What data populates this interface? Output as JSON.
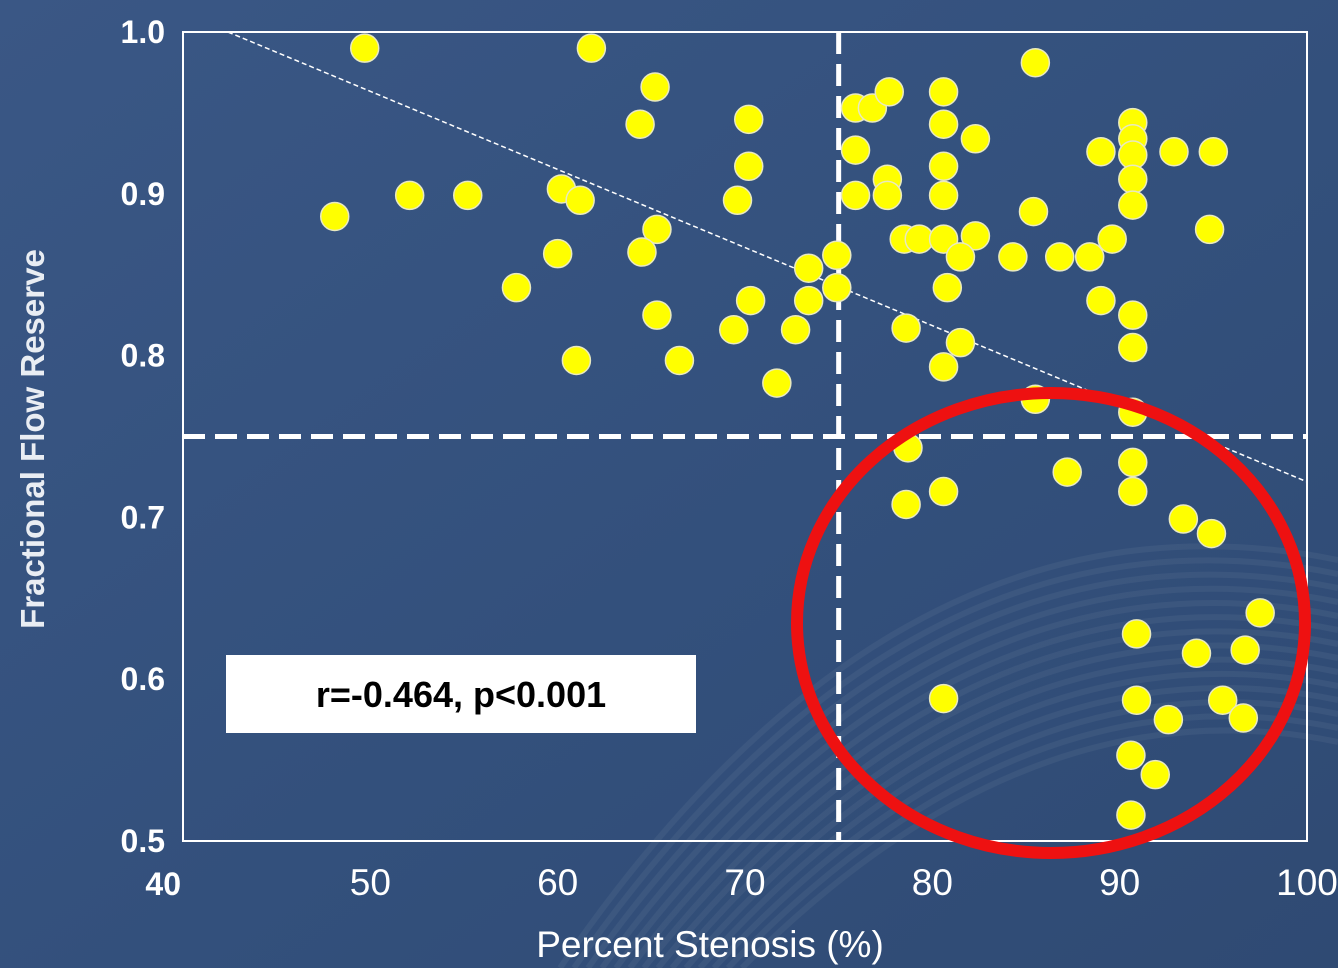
{
  "colors": {
    "background": "#34507c",
    "marker": "#ffff00",
    "circle": "#ee1111",
    "axes": "#ffffff",
    "y_label": "#e9edf3"
  },
  "annotation": "r=-0.464, p<0.001",
  "chart_data": {
    "type": "scatter",
    "title": "",
    "xlabel": "Percent Stenosis (%)",
    "ylabel": "Fractional Flow Reserve",
    "xlim": [
      40,
      100
    ],
    "ylim": [
      0.5,
      1.0
    ],
    "x_ticks": [
      "40",
      "50",
      "60",
      "70",
      "80",
      "90",
      "100"
    ],
    "y_ticks": [
      "1.0",
      "0.9",
      "0.8",
      "0.7",
      "0.6",
      "0.5"
    ],
    "grid": false,
    "reference_lines": {
      "x": 75,
      "y": 0.75
    },
    "regression_line": {
      "from": [
        42.4,
        1.0
      ],
      "to": [
        100,
        0.722
      ]
    },
    "highlight": "red ellipse around points with stenosis > 75% and FFR < 0.75",
    "points": [
      [
        49.7,
        0.99
      ],
      [
        61.8,
        0.99
      ],
      [
        65.2,
        0.966
      ],
      [
        64.4,
        0.943
      ],
      [
        70.2,
        0.946
      ],
      [
        70.2,
        0.917
      ],
      [
        48.1,
        0.886
      ],
      [
        52.1,
        0.899
      ],
      [
        55.2,
        0.899
      ],
      [
        60.2,
        0.903
      ],
      [
        61.2,
        0.896
      ],
      [
        65.3,
        0.878
      ],
      [
        60.0,
        0.863
      ],
      [
        64.5,
        0.864
      ],
      [
        57.8,
        0.842
      ],
      [
        69.6,
        0.896
      ],
      [
        75.9,
        0.953
      ],
      [
        76.8,
        0.953
      ],
      [
        77.7,
        0.963
      ],
      [
        80.6,
        0.963
      ],
      [
        80.6,
        0.943
      ],
      [
        82.3,
        0.934
      ],
      [
        85.5,
        0.981
      ],
      [
        75.9,
        0.927
      ],
      [
        80.6,
        0.917
      ],
      [
        77.6,
        0.909
      ],
      [
        75.9,
        0.899
      ],
      [
        77.6,
        0.899
      ],
      [
        80.6,
        0.899
      ],
      [
        85.4,
        0.889
      ],
      [
        78.5,
        0.872
      ],
      [
        79.3,
        0.872
      ],
      [
        80.6,
        0.872
      ],
      [
        82.3,
        0.874
      ],
      [
        81.5,
        0.861
      ],
      [
        84.3,
        0.861
      ],
      [
        86.8,
        0.861
      ],
      [
        88.4,
        0.861
      ],
      [
        89.6,
        0.872
      ],
      [
        90.7,
        0.944
      ],
      [
        90.7,
        0.934
      ],
      [
        90.7,
        0.924
      ],
      [
        89.0,
        0.926
      ],
      [
        92.9,
        0.926
      ],
      [
        95.0,
        0.926
      ],
      [
        90.7,
        0.909
      ],
      [
        90.7,
        0.893
      ],
      [
        94.8,
        0.878
      ],
      [
        73.4,
        0.854
      ],
      [
        74.9,
        0.862
      ],
      [
        74.9,
        0.842
      ],
      [
        73.4,
        0.834
      ],
      [
        70.3,
        0.834
      ],
      [
        65.3,
        0.825
      ],
      [
        69.4,
        0.816
      ],
      [
        72.7,
        0.816
      ],
      [
        61.0,
        0.797
      ],
      [
        66.5,
        0.797
      ],
      [
        71.7,
        0.783
      ],
      [
        80.8,
        0.842
      ],
      [
        78.6,
        0.817
      ],
      [
        81.5,
        0.808
      ],
      [
        80.6,
        0.793
      ],
      [
        89.0,
        0.834
      ],
      [
        90.7,
        0.825
      ],
      [
        90.7,
        0.805
      ],
      [
        85.5,
        0.773
      ],
      [
        90.7,
        0.765
      ],
      [
        78.7,
        0.743
      ],
      [
        78.6,
        0.708
      ],
      [
        80.6,
        0.716
      ],
      [
        87.2,
        0.728
      ],
      [
        90.7,
        0.734
      ],
      [
        90.7,
        0.716
      ],
      [
        93.4,
        0.699
      ],
      [
        94.9,
        0.69
      ],
      [
        97.5,
        0.641
      ],
      [
        90.9,
        0.628
      ],
      [
        94.1,
        0.616
      ],
      [
        96.7,
        0.618
      ],
      [
        80.6,
        0.588
      ],
      [
        90.9,
        0.587
      ],
      [
        92.6,
        0.575
      ],
      [
        95.5,
        0.587
      ],
      [
        96.6,
        0.576
      ],
      [
        90.6,
        0.553
      ],
      [
        91.9,
        0.541
      ],
      [
        90.6,
        0.516
      ]
    ]
  }
}
